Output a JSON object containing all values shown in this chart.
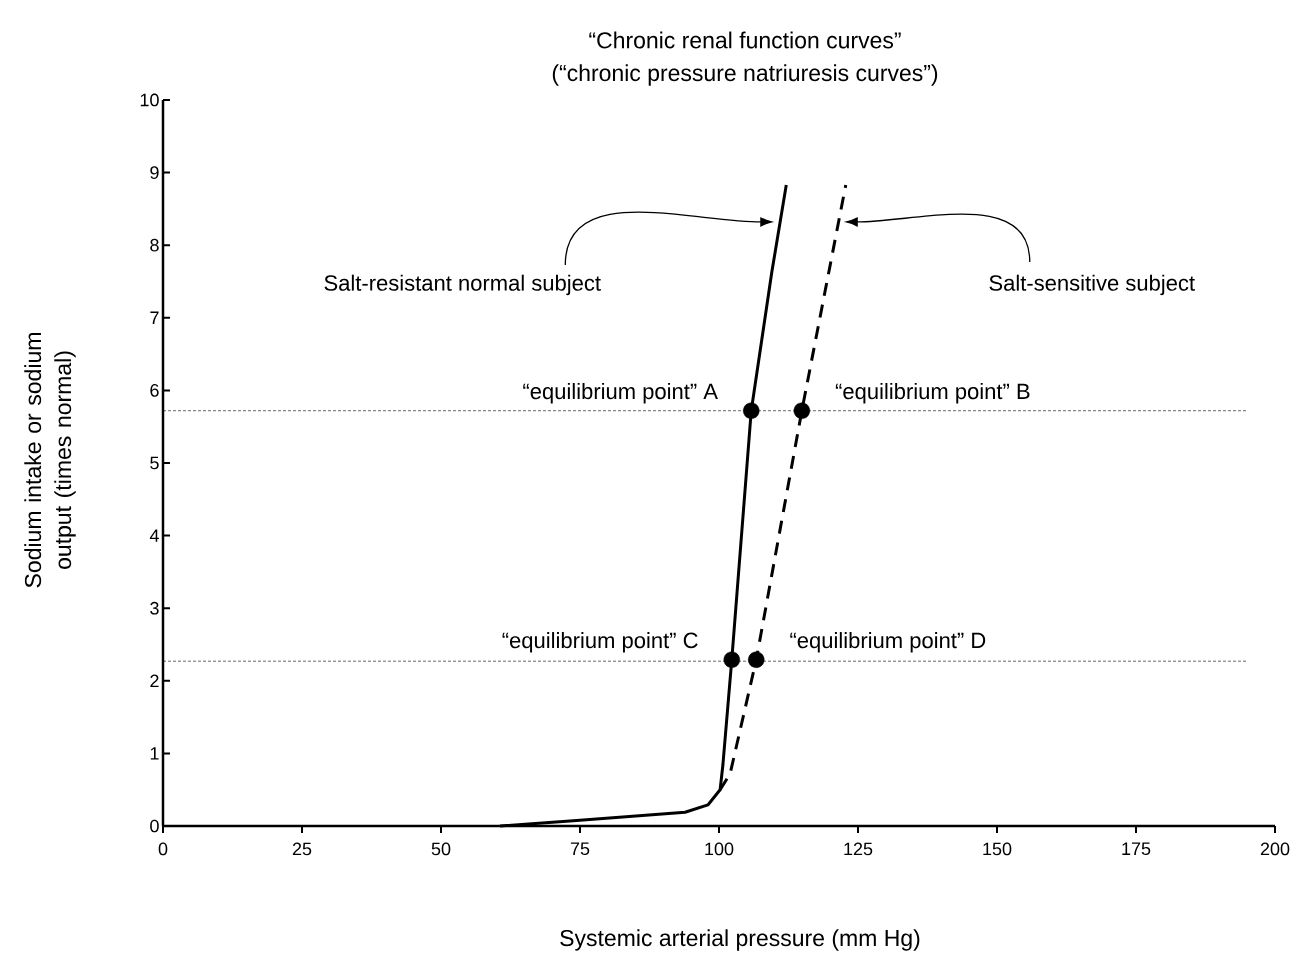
{
  "chart_data": {
    "type": "line",
    "title": "“Chronic renal  function curves”",
    "subtitle": "(“chronic pressure natriuresis curves”)",
    "xlabel": "Systemic arterial pressure (mm Hg)",
    "ylabel": "Sodium intake or sodium output (times normal)",
    "xlim": [
      0,
      200
    ],
    "xticks": [
      0,
      25,
      50,
      75,
      100,
      125,
      150,
      175,
      200
    ],
    "ylim": [
      0,
      10
    ],
    "yticks": [
      0,
      1,
      2,
      3,
      4,
      5,
      6,
      7,
      8,
      9,
      10
    ],
    "grid": false,
    "series": [
      {
        "color": "#000000",
        "line_style": "solid",
        "marker": "none",
        "x": [
          60.6,
          75,
          93.9,
          98,
          100.2,
          100.7,
          102.3,
          105.8,
          109.5,
          112.1
        ],
        "values": [
          0,
          0.08,
          0.19,
          0.29,
          0.5,
          0.84,
          2.29,
          5.72,
          7.63,
          8.83
        ]
      },
      {
        "color": "#000000",
        "line_style": "dashed",
        "marker": "none",
        "x": [
          100.2,
          102,
          106.7,
          114.9,
          122.8
        ],
        "values": [
          0.5,
          0.72,
          2.29,
          5.72,
          8.83
        ]
      },
      {
        "type": "scatter",
        "color": "#000000",
        "marker": "circle",
        "x": [
          105.8,
          114.9,
          102.3,
          106.7
        ],
        "values": [
          5.72,
          5.72,
          2.29,
          2.29
        ]
      }
    ],
    "ref_lines": [
      {
        "axis": "y",
        "value": 5.72,
        "color": "#000000",
        "line_style": "dashed"
      },
      {
        "axis": "y",
        "value": 2.27,
        "color": "#000000",
        "line_style": "dashed"
      }
    ],
    "annotations": [
      "Salt-resistant normal subject",
      "Salt-sensitive subject",
      {
        "text": "“equilibrium point” A",
        "x": 105.8,
        "y": 5.72
      },
      {
        "text": "“equilibrium point” B",
        "x": 114.9,
        "y": 5.72
      },
      {
        "text": "“equilibrium point” C",
        "x": 102.3,
        "y": 2.29
      },
      {
        "text": "“equilibrium point” D",
        "x": 106.7,
        "y": 2.29
      }
    ]
  }
}
